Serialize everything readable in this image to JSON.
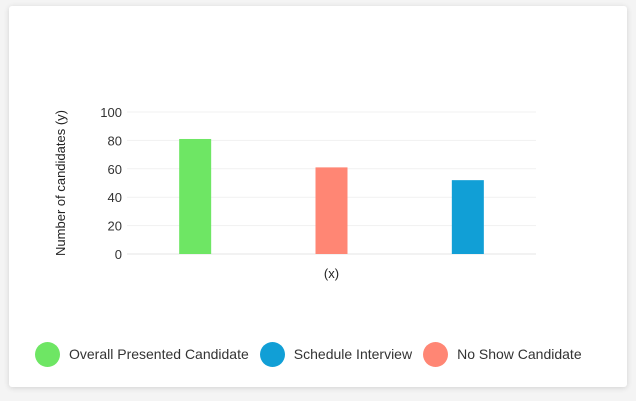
{
  "chart_data": {
    "type": "bar",
    "categories": [
      "Overall Presented Candidate",
      "No Show Candidate",
      "Schedule Interview"
    ],
    "values": [
      81,
      61,
      52
    ],
    "colors": [
      "#6ee664",
      "#ff8674",
      "#119fd6"
    ],
    "title": "",
    "xlabel": "(x)",
    "ylabel": "Number of candidates (y)",
    "ylim": [
      0,
      100
    ],
    "yticks": [
      0,
      20,
      40,
      60,
      80,
      100
    ],
    "grid": true,
    "legend_position": "bottom"
  },
  "legend": {
    "items": [
      {
        "label": "Overall Presented Candidate",
        "color": "#6ee664"
      },
      {
        "label": "Schedule Interview",
        "color": "#119fd6"
      },
      {
        "label": "No Show Candidate",
        "color": "#ff8674"
      }
    ]
  }
}
